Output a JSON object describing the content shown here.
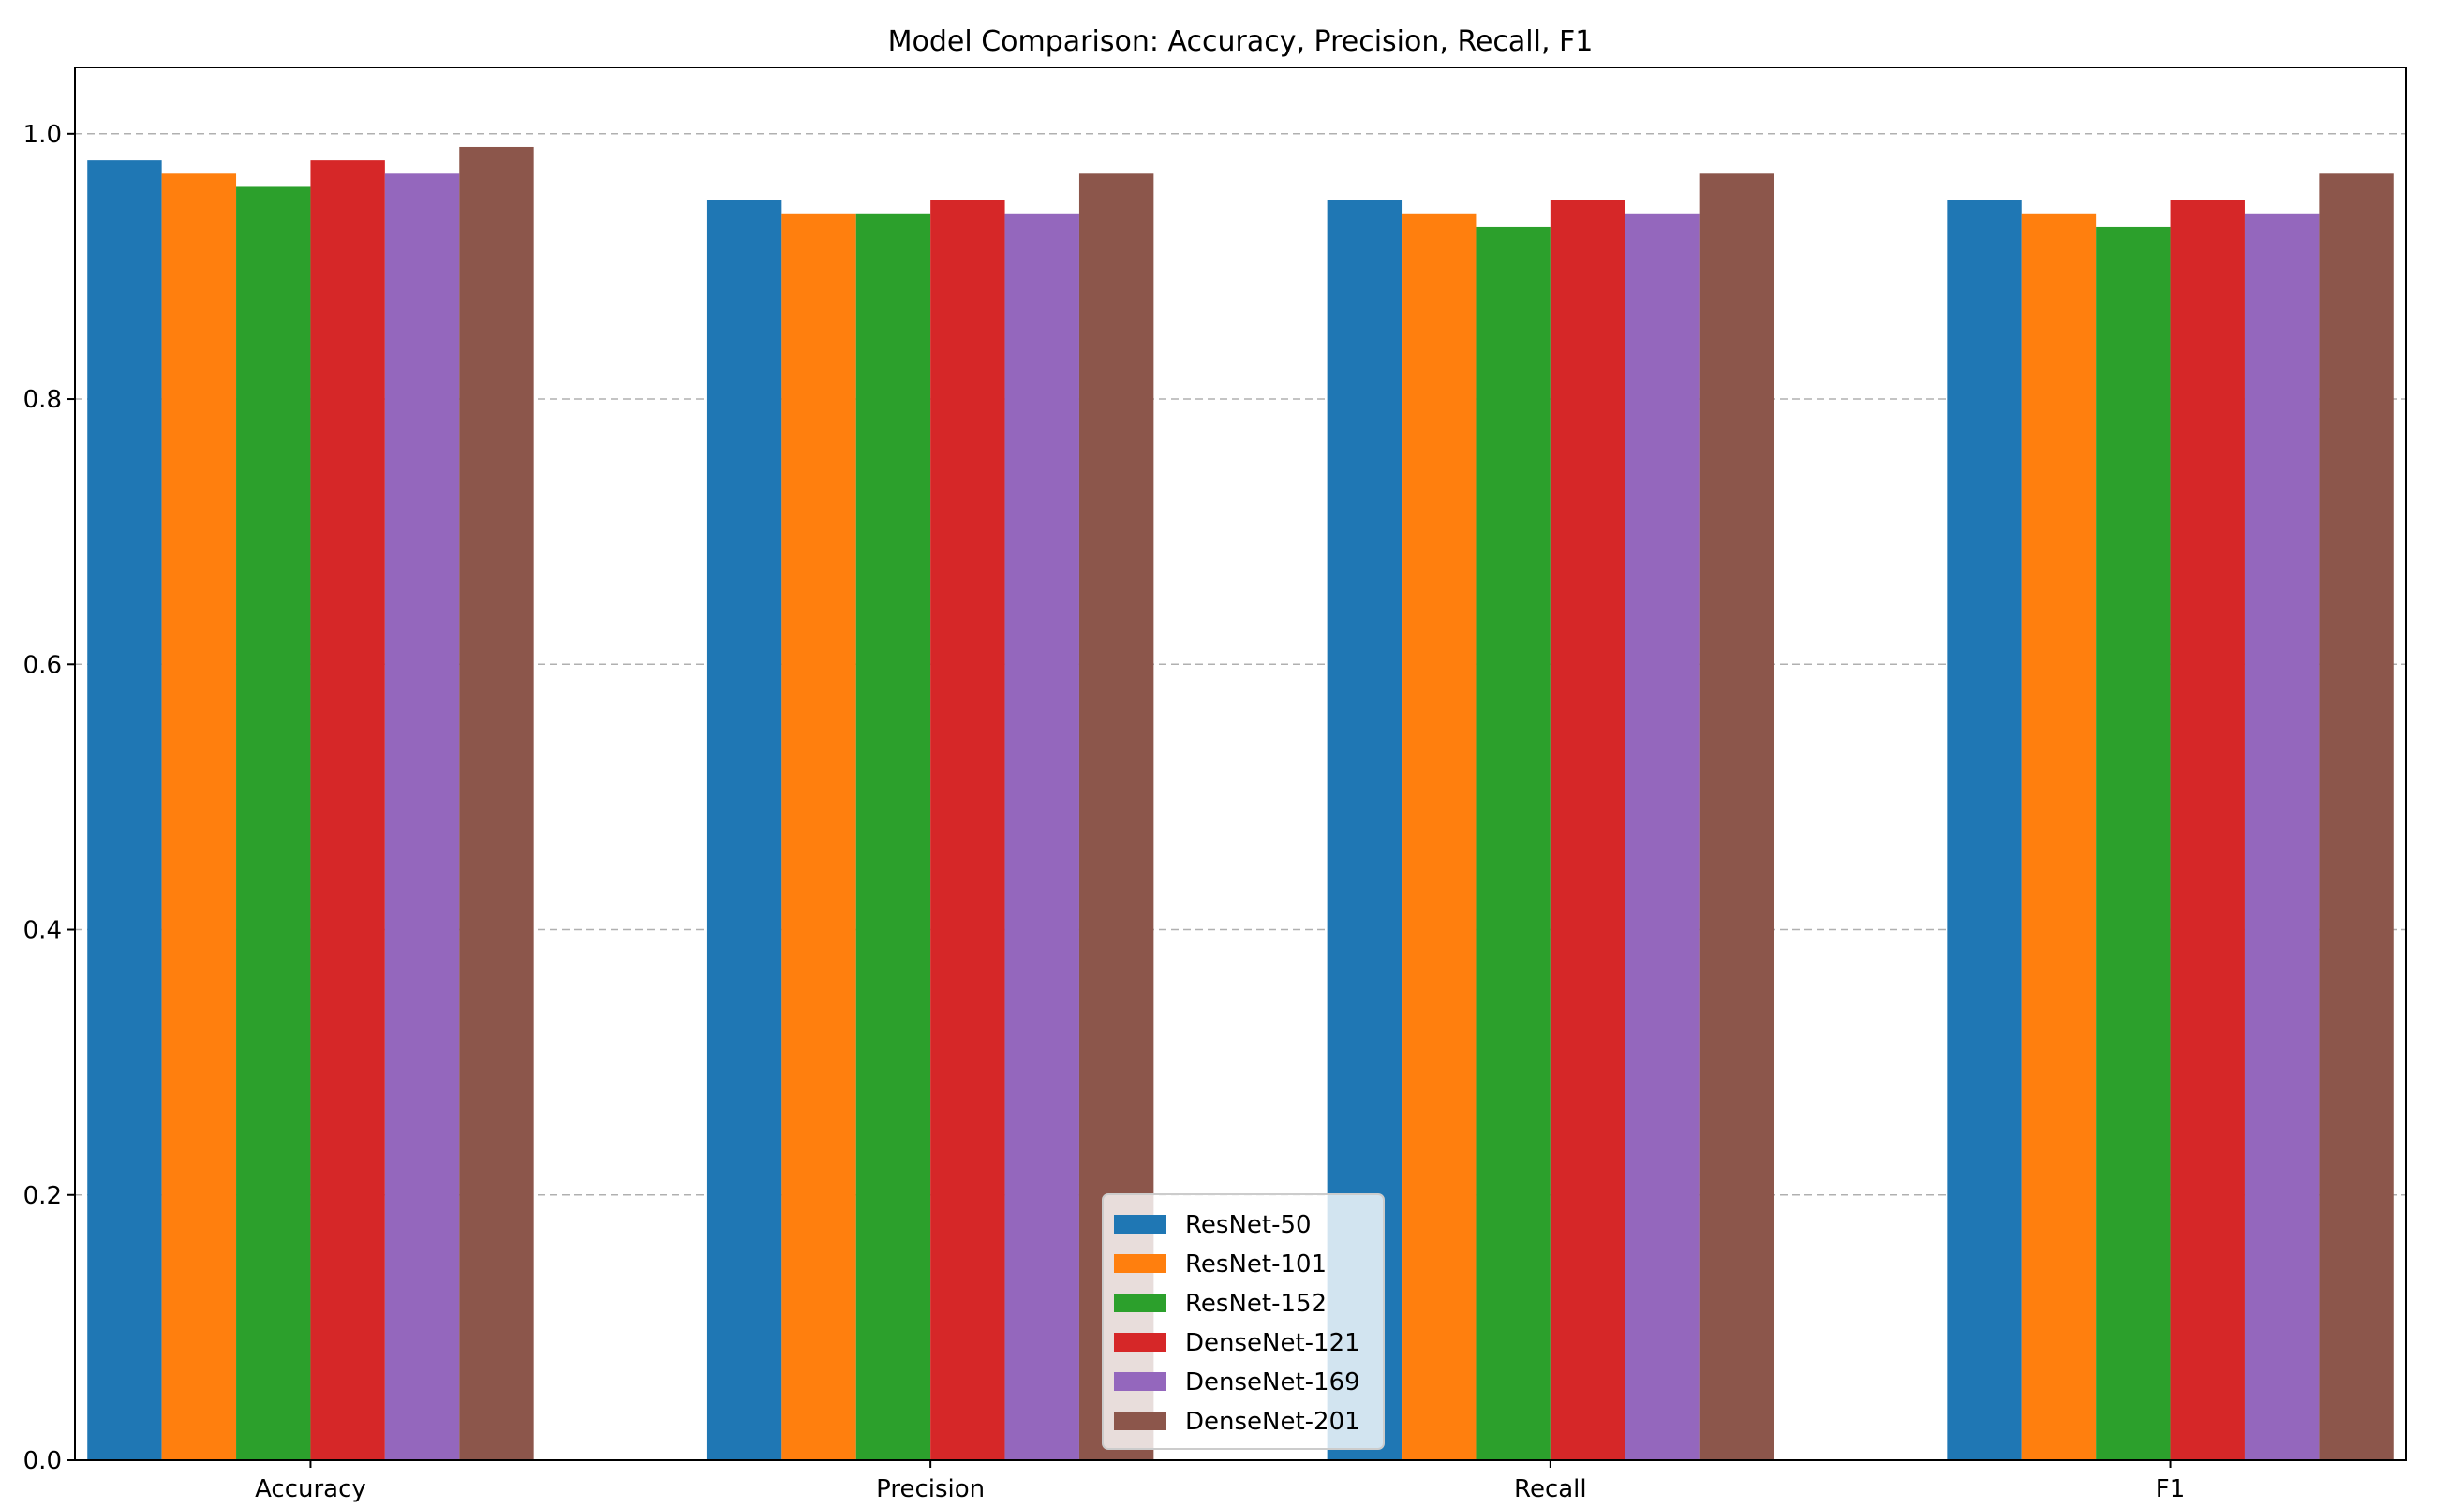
{
  "chart_data": {
    "type": "bar",
    "title": "Model Comparison: Accuracy, Precision, Recall, F1",
    "xlabel": "",
    "ylabel": "",
    "categories": [
      "Accuracy",
      "Precision",
      "Recall",
      "F1"
    ],
    "series": [
      {
        "name": "ResNet-50",
        "color": "#1f77b4",
        "values": [
          0.98,
          0.95,
          0.95,
          0.95
        ]
      },
      {
        "name": "ResNet-101",
        "color": "#ff7f0e",
        "values": [
          0.97,
          0.94,
          0.94,
          0.94
        ]
      },
      {
        "name": "ResNet-152",
        "color": "#2ca02c",
        "values": [
          0.96,
          0.94,
          0.93,
          0.93
        ]
      },
      {
        "name": "DenseNet-121",
        "color": "#d62728",
        "values": [
          0.98,
          0.95,
          0.95,
          0.95
        ]
      },
      {
        "name": "DenseNet-169",
        "color": "#9467bd",
        "values": [
          0.97,
          0.94,
          0.94,
          0.94
        ]
      },
      {
        "name": "DenseNet-201",
        "color": "#8c564b",
        "values": [
          0.99,
          0.97,
          0.97,
          0.97
        ]
      }
    ],
    "ylim": [
      0,
      1.05
    ],
    "yticks": [
      "0.0",
      "0.2",
      "0.4",
      "0.6",
      "0.8",
      "1.0"
    ],
    "grid": {
      "axis": "y",
      "style": "dashed"
    },
    "legend": {
      "placement": "bottom-center"
    }
  }
}
